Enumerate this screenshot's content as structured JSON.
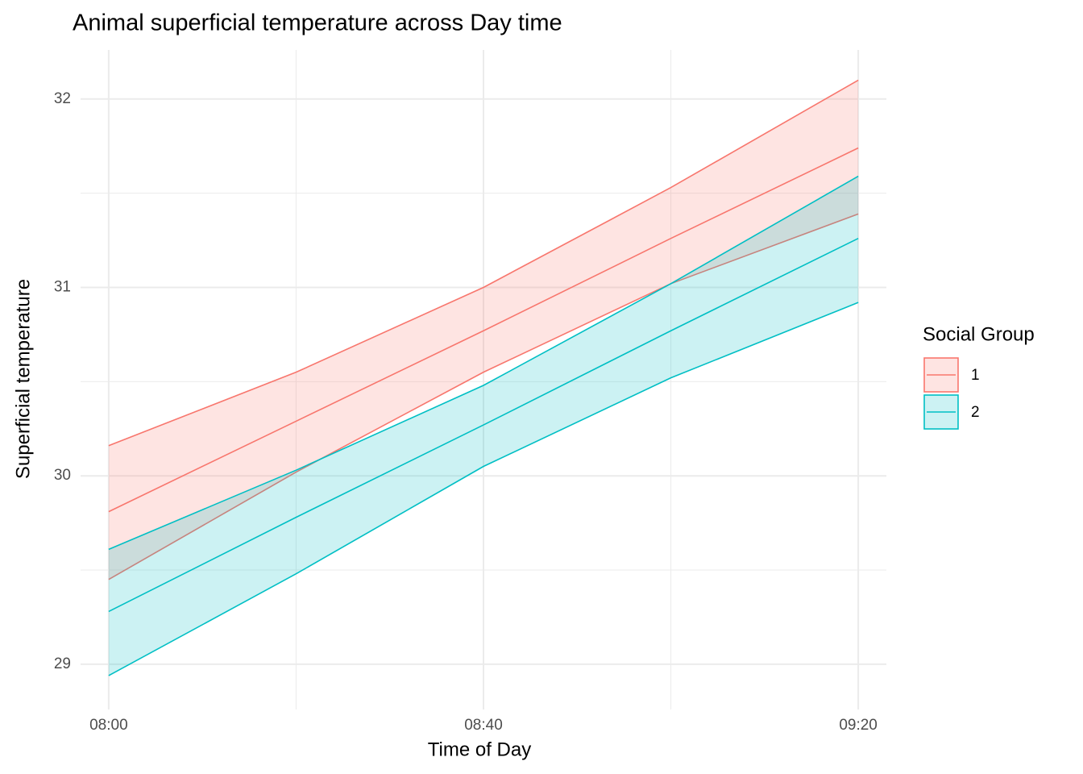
{
  "chart_data": {
    "type": "ribbon-line",
    "title": "Animal superficial temperature across Day time",
    "x_label": "Time of Day",
    "y_label": "Superficial temperature",
    "x": [
      "08:00",
      "08:20",
      "08:40",
      "09:00",
      "09:20"
    ],
    "xlim": [
      "07:57",
      "09:23"
    ],
    "xticks": [
      "08:00",
      "08:40",
      "09:20"
    ],
    "ylim": [
      28.76,
      32.26
    ],
    "yticks": [
      29,
      30,
      31,
      32
    ],
    "grid": true,
    "minor_grid": true,
    "legend_title": "Social Group",
    "legend_position": "right",
    "series": [
      {
        "name": "1",
        "color": "#F8766D",
        "values": [
          29.81,
          30.29,
          30.77,
          31.26,
          31.74
        ],
        "lower": [
          29.45,
          30.02,
          30.55,
          31.02,
          31.39
        ],
        "upper": [
          30.16,
          30.55,
          31.0,
          31.53,
          32.1
        ]
      },
      {
        "name": "2",
        "color": "#00BFC4",
        "values": [
          29.28,
          29.78,
          30.27,
          30.77,
          31.26
        ],
        "lower": [
          28.94,
          29.48,
          30.05,
          30.52,
          30.92
        ],
        "upper": [
          29.61,
          30.03,
          30.48,
          31.02,
          31.59
        ]
      }
    ]
  }
}
